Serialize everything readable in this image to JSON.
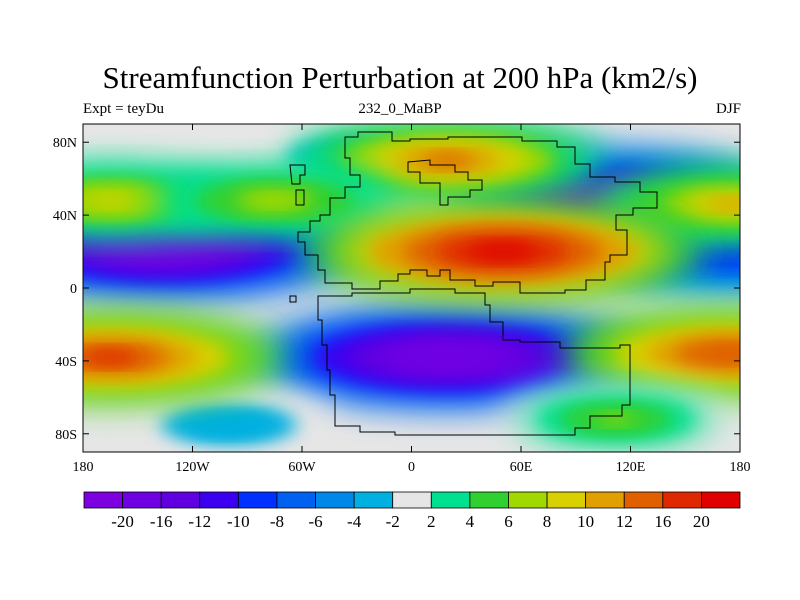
{
  "title": "Streamfunction Perturbation at 200 hPa (km2/s)",
  "subtitle_left": "Expt = teyDu",
  "subtitle_center": "232_0_MaBP",
  "subtitle_right": "DJF",
  "map": {
    "lon_range": [
      -180,
      180
    ],
    "lat_range": [
      -90,
      90
    ],
    "x_ticks": [
      {
        "value": -180,
        "label": "180"
      },
      {
        "value": -120,
        "label": "120W"
      },
      {
        "value": -60,
        "label": "60W"
      },
      {
        "value": 0,
        "label": "0"
      },
      {
        "value": 60,
        "label": "60E"
      },
      {
        "value": 120,
        "label": "120E"
      },
      {
        "value": 180,
        "label": "180"
      }
    ],
    "y_ticks": [
      {
        "value": 80,
        "label": "80N"
      },
      {
        "value": 40,
        "label": "40N"
      },
      {
        "value": 0,
        "label": "0"
      },
      {
        "value": -40,
        "label": "40S"
      },
      {
        "value": -80,
        "label": "80S"
      }
    ],
    "background_color": "#e6e6e6",
    "pos_centers": [
      {
        "lon": 20,
        "lat": 70,
        "value": 13
      },
      {
        "lon": -165,
        "lat": 48,
        "value": 9
      },
      {
        "lon": 175,
        "lat": 46,
        "value": 10
      },
      {
        "lon": -75,
        "lat": 48,
        "value": 7
      },
      {
        "lon": 50,
        "lat": 20,
        "value": 20
      },
      {
        "lon": -165,
        "lat": -38,
        "value": 16
      },
      {
        "lon": 175,
        "lat": -36,
        "value": 15
      },
      {
        "lon": 112,
        "lat": -72,
        "value": 6
      }
    ],
    "neg_centers": [
      {
        "lon": 110,
        "lat": 52,
        "value": -14
      },
      {
        "lon": -135,
        "lat": 22,
        "value": -20
      },
      {
        "lon": 175,
        "lat": 18,
        "value": -10
      },
      {
        "lon": 20,
        "lat": -38,
        "value": -20
      },
      {
        "lon": -30,
        "lat": 72,
        "value": -4
      },
      {
        "lon": -100,
        "lat": -75,
        "value": -4
      }
    ]
  },
  "colorbar": {
    "colors": [
      "#7d00e0",
      "#7000e4",
      "#6000e0",
      "#3c00f0",
      "#0030ff",
      "#0060f0",
      "#0088e8",
      "#00b0e0",
      "#e6e6e6",
      "#00e090",
      "#30d030",
      "#a0d800",
      "#d8d000",
      "#e0a000",
      "#e06000",
      "#e02800",
      "#e00000"
    ],
    "labels": [
      "-20",
      "-16",
      "-12",
      "-10",
      "-8",
      "-6",
      "-4",
      "-2",
      "2",
      "4",
      "6",
      "8",
      "10",
      "12",
      "16",
      "20"
    ]
  }
}
